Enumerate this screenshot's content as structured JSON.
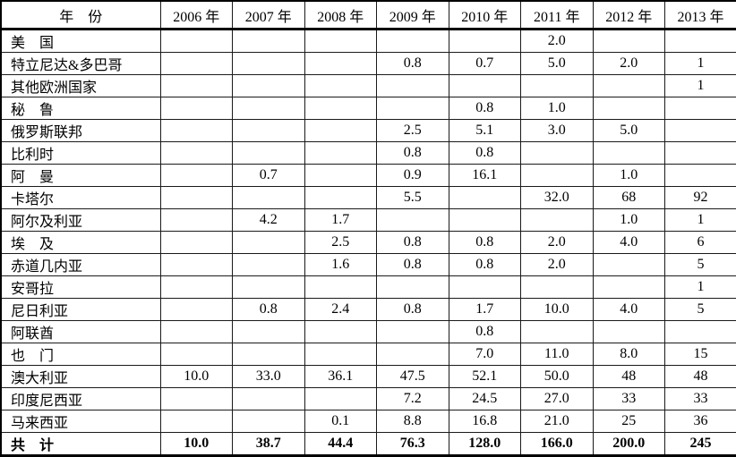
{
  "colors": {
    "background": "#ffffff",
    "border": "#000000",
    "text": "#000000"
  },
  "table": {
    "header": [
      "年　份",
      "2006 年",
      "2007 年",
      "2008 年",
      "2009 年",
      "2010 年",
      "2011 年",
      "2012 年",
      "2013 年"
    ],
    "rows": [
      {
        "label": "美　国",
        "values": [
          "",
          "",
          "",
          "",
          "",
          "2.0",
          "",
          ""
        ],
        "bold": false
      },
      {
        "label": "特立尼达&多巴哥",
        "values": [
          "",
          "",
          "",
          "0.8",
          "0.7",
          "5.0",
          "2.0",
          "1"
        ],
        "bold": false
      },
      {
        "label": "其他欧洲国家",
        "values": [
          "",
          "",
          "",
          "",
          "",
          "",
          "",
          "1"
        ],
        "bold": false
      },
      {
        "label": "秘　鲁",
        "values": [
          "",
          "",
          "",
          "",
          "0.8",
          "1.0",
          "",
          ""
        ],
        "bold": false
      },
      {
        "label": "俄罗斯联邦",
        "values": [
          "",
          "",
          "",
          "2.5",
          "5.1",
          "3.0",
          "5.0",
          ""
        ],
        "bold": false
      },
      {
        "label": "比利时",
        "values": [
          "",
          "",
          "",
          "0.8",
          "0.8",
          "",
          "",
          ""
        ],
        "bold": false
      },
      {
        "label": "阿　曼",
        "values": [
          "",
          "0.7",
          "",
          "0.9",
          "16.1",
          "",
          "1.0",
          ""
        ],
        "bold": false
      },
      {
        "label": "卡塔尔",
        "values": [
          "",
          "",
          "",
          "5.5",
          "",
          "32.0",
          "68",
          "92"
        ],
        "bold": false
      },
      {
        "label": "阿尔及利亚",
        "values": [
          "",
          "4.2",
          "1.7",
          "",
          "",
          "",
          "1.0",
          "1"
        ],
        "bold": false
      },
      {
        "label": "埃　及",
        "values": [
          "",
          "",
          "2.5",
          "0.8",
          "0.8",
          "2.0",
          "4.0",
          "6"
        ],
        "bold": false
      },
      {
        "label": "赤道几内亚",
        "values": [
          "",
          "",
          "1.6",
          "0.8",
          "0.8",
          "2.0",
          "",
          "5"
        ],
        "bold": false
      },
      {
        "label": "安哥拉",
        "values": [
          "",
          "",
          "",
          "",
          "",
          "",
          "",
          "1"
        ],
        "bold": false
      },
      {
        "label": "尼日利亚",
        "values": [
          "",
          "0.8",
          "2.4",
          "0.8",
          "1.7",
          "10.0",
          "4.0",
          "5"
        ],
        "bold": false
      },
      {
        "label": "阿联酋",
        "values": [
          "",
          "",
          "",
          "",
          "0.8",
          "",
          "",
          ""
        ],
        "bold": false
      },
      {
        "label": "也　门",
        "values": [
          "",
          "",
          "",
          "",
          "7.0",
          "11.0",
          "8.0",
          "15"
        ],
        "bold": false
      },
      {
        "label": "澳大利亚",
        "values": [
          "10.0",
          "33.0",
          "36.1",
          "47.5",
          "52.1",
          "50.0",
          "48",
          "48"
        ],
        "bold": false
      },
      {
        "label": "印度尼西亚",
        "values": [
          "",
          "",
          "",
          "7.2",
          "24.5",
          "27.0",
          "33",
          "33"
        ],
        "bold": false
      },
      {
        "label": "马来西亚",
        "values": [
          "",
          "",
          "0.1",
          "8.8",
          "16.8",
          "21.0",
          "25",
          "36"
        ],
        "bold": false
      },
      {
        "label": "共　计",
        "values": [
          "10.0",
          "38.7",
          "44.4",
          "76.3",
          "128.0",
          "166.0",
          "200.0",
          "245"
        ],
        "bold": true
      }
    ]
  }
}
